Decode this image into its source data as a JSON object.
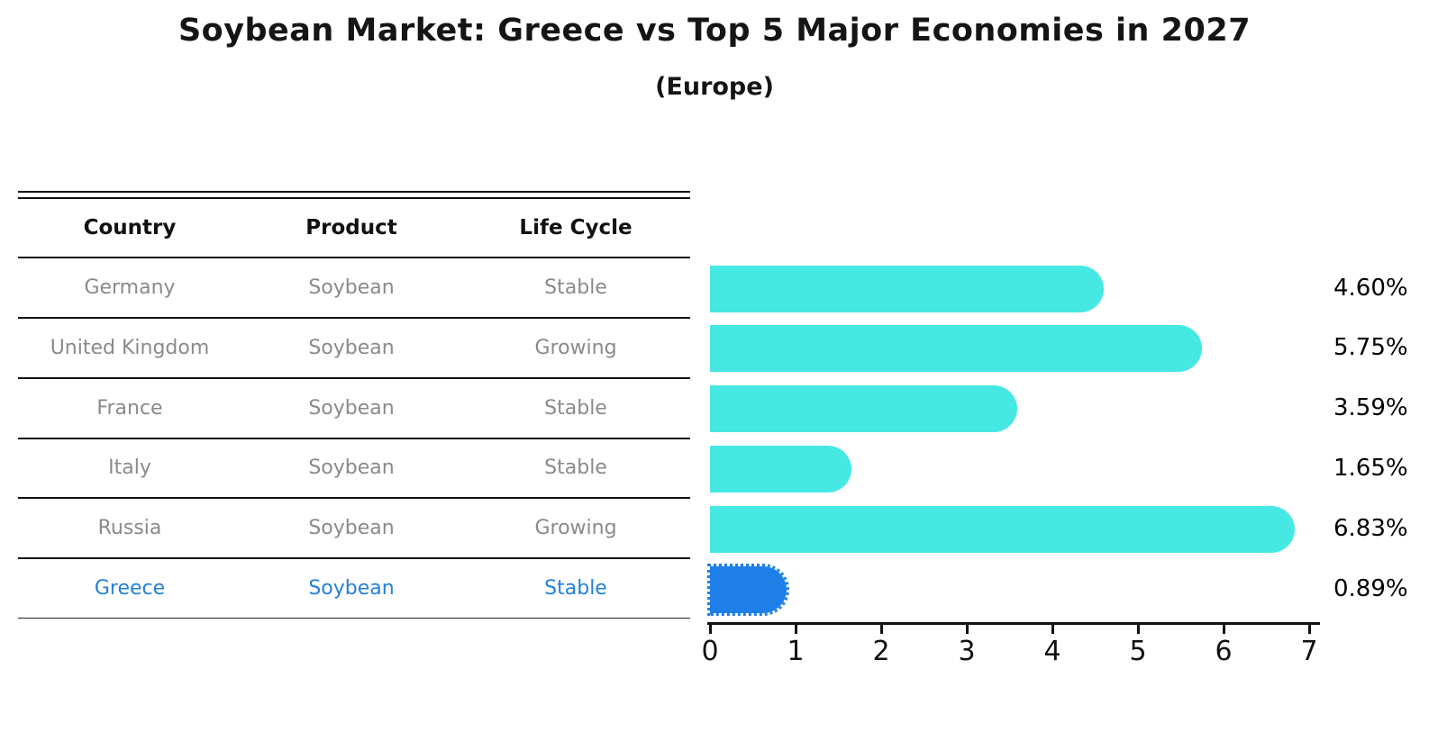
{
  "figure": {
    "title": "Soybean Market: Greece vs Top 5 Major Economies in 2027",
    "subtitle": "(Europe)"
  },
  "table": {
    "columns": [
      "Country",
      "Product",
      "Life Cycle"
    ],
    "rows": [
      {
        "country": "Germany",
        "product": "Soybean",
        "life_cycle": "Stable",
        "highlight": false
      },
      {
        "country": "United Kingdom",
        "product": "Soybean",
        "life_cycle": "Growing",
        "highlight": false
      },
      {
        "country": "France",
        "product": "Soybean",
        "life_cycle": "Stable",
        "highlight": false
      },
      {
        "country": "Italy",
        "product": "Soybean",
        "life_cycle": "Stable",
        "highlight": false
      },
      {
        "country": "Russia",
        "product": "Soybean",
        "life_cycle": "Growing",
        "highlight": false
      },
      {
        "country": "Greece",
        "product": "Soybean",
        "life_cycle": "Stable",
        "highlight": true
      }
    ]
  },
  "chart_data": {
    "type": "bar",
    "orientation": "horizontal",
    "title": "Soybean Market: Greece vs Top 5 Major Economies in 2027 (Europe)",
    "categories": [
      "Germany",
      "United Kingdom",
      "France",
      "Italy",
      "Russia",
      "Greece"
    ],
    "values": [
      4.6,
      5.75,
      3.59,
      1.65,
      6.83,
      0.89
    ],
    "value_labels": [
      "4.60%",
      "5.75%",
      "3.59%",
      "1.65%",
      "6.83%",
      "0.89%"
    ],
    "highlight_index": 5,
    "xlim": [
      0,
      7
    ],
    "x_ticks": [
      "0",
      "1",
      "2",
      "3",
      "4",
      "5",
      "6",
      "7"
    ],
    "grid": false,
    "legend": false,
    "bar_color": "#46E8E3",
    "highlight_bar_color": "#1F7FE8",
    "highlight_text_color": "#2380DC",
    "muted_text_color": "#8a8a8a",
    "axis_color": "#111111",
    "label_color": "#000000"
  }
}
